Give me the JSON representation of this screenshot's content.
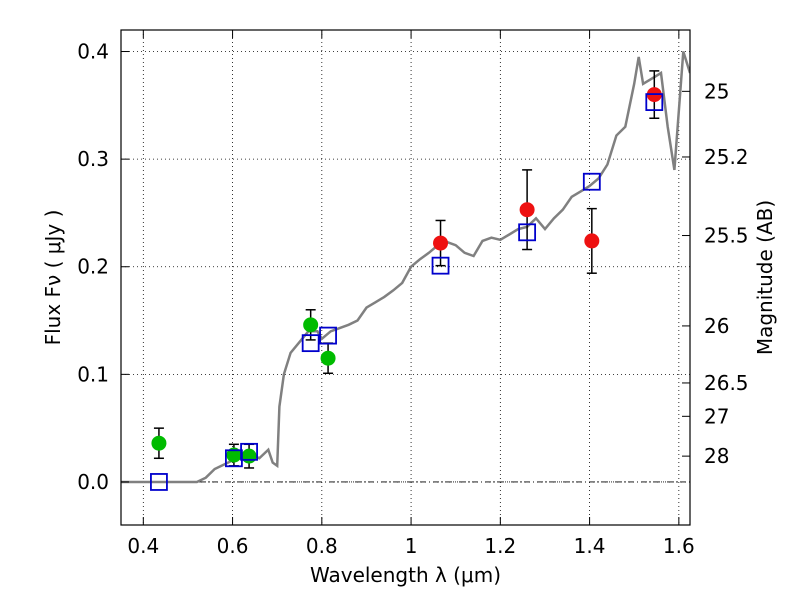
{
  "chart_data": {
    "type": "scatter",
    "title": "",
    "xlabel": "Wavelength  λ (μm)",
    "ylabel": "Flux  Fν  ( μJy )",
    "y2label": "Magnitude (AB)",
    "xlim": [
      0.35,
      1.625
    ],
    "ylim": [
      -0.04,
      0.42
    ],
    "grid": true,
    "xticks": [
      0.4,
      0.6,
      0.8,
      1.0,
      1.2,
      1.4,
      1.6
    ],
    "xtick_labels": [
      "0.4",
      "0.6",
      "0.8",
      "1",
      "1.2",
      "1.4",
      "1.6"
    ],
    "yticks": [
      0.0,
      0.1,
      0.2,
      0.3,
      0.4
    ],
    "ytick_labels": [
      "0.0",
      "0.1",
      "0.2",
      "0.3",
      "0.4"
    ],
    "y2ticks": [
      {
        "label": "25",
        "flux": 0.363
      },
      {
        "label": "25.2",
        "flux": 0.302
      },
      {
        "label": "25.5",
        "flux": 0.229
      },
      {
        "label": "26",
        "flux": 0.145
      },
      {
        "label": "26.5",
        "flux": 0.092
      },
      {
        "label": "27",
        "flux": 0.061
      },
      {
        "label": "28",
        "flux": 0.024
      }
    ],
    "series": [
      {
        "kind": "line",
        "color": "#808080",
        "points": [
          [
            0.35,
            0.0
          ],
          [
            0.52,
            0.0
          ],
          [
            0.54,
            0.004
          ],
          [
            0.56,
            0.012
          ],
          [
            0.58,
            0.016
          ],
          [
            0.6,
            0.02
          ],
          [
            0.62,
            0.022
          ],
          [
            0.64,
            0.026
          ],
          [
            0.66,
            0.022
          ],
          [
            0.68,
            0.03
          ],
          [
            0.69,
            0.018
          ],
          [
            0.7,
            0.015
          ],
          [
            0.705,
            0.07
          ],
          [
            0.715,
            0.1
          ],
          [
            0.73,
            0.12
          ],
          [
            0.75,
            0.13
          ],
          [
            0.77,
            0.14
          ],
          [
            0.79,
            0.14
          ],
          [
            0.8,
            0.133
          ],
          [
            0.82,
            0.14
          ],
          [
            0.84,
            0.143
          ],
          [
            0.86,
            0.146
          ],
          [
            0.88,
            0.15
          ],
          [
            0.9,
            0.162
          ],
          [
            0.92,
            0.167
          ],
          [
            0.94,
            0.172
          ],
          [
            0.96,
            0.178
          ],
          [
            0.98,
            0.185
          ],
          [
            1.0,
            0.2
          ],
          [
            1.02,
            0.207
          ],
          [
            1.04,
            0.213
          ],
          [
            1.06,
            0.22
          ],
          [
            1.08,
            0.223
          ],
          [
            1.1,
            0.22
          ],
          [
            1.12,
            0.213
          ],
          [
            1.14,
            0.21
          ],
          [
            1.16,
            0.224
          ],
          [
            1.18,
            0.227
          ],
          [
            1.2,
            0.225
          ],
          [
            1.22,
            0.23
          ],
          [
            1.24,
            0.235
          ],
          [
            1.26,
            0.237
          ],
          [
            1.28,
            0.245
          ],
          [
            1.3,
            0.235
          ],
          [
            1.32,
            0.245
          ],
          [
            1.34,
            0.253
          ],
          [
            1.36,
            0.265
          ],
          [
            1.38,
            0.27
          ],
          [
            1.4,
            0.275
          ],
          [
            1.42,
            0.282
          ],
          [
            1.44,
            0.295
          ],
          [
            1.46,
            0.322
          ],
          [
            1.48,
            0.33
          ],
          [
            1.5,
            0.37
          ],
          [
            1.51,
            0.395
          ],
          [
            1.52,
            0.37
          ],
          [
            1.54,
            0.375
          ],
          [
            1.56,
            0.38
          ],
          [
            1.575,
            0.33
          ],
          [
            1.59,
            0.29
          ],
          [
            1.61,
            0.4
          ],
          [
            1.625,
            0.38
          ]
        ]
      },
      {
        "kind": "model-photometry",
        "marker": "open-square",
        "color": "#0000cc",
        "points": [
          [
            0.435,
            0.0
          ],
          [
            0.603,
            0.022
          ],
          [
            0.637,
            0.028
          ],
          [
            0.775,
            0.129
          ],
          [
            0.814,
            0.136
          ],
          [
            1.066,
            0.201
          ],
          [
            1.26,
            0.232
          ],
          [
            1.405,
            0.279
          ],
          [
            1.545,
            0.353
          ]
        ]
      },
      {
        "kind": "observed-optical",
        "marker": "filled-circle",
        "color": "#00bb00",
        "points": [
          {
            "x": 0.435,
            "y": 0.036,
            "err": 0.014
          },
          {
            "x": 0.603,
            "y": 0.025,
            "err": 0.01
          },
          {
            "x": 0.637,
            "y": 0.024,
            "err": 0.011
          },
          {
            "x": 0.775,
            "y": 0.146,
            "err": 0.014
          },
          {
            "x": 0.814,
            "y": 0.115,
            "err": 0.014
          }
        ]
      },
      {
        "kind": "observed-nir",
        "marker": "filled-circle",
        "color": "#ee1111",
        "points": [
          {
            "x": 1.066,
            "y": 0.222,
            "err": 0.021
          },
          {
            "x": 1.26,
            "y": 0.253,
            "err": 0.037
          },
          {
            "x": 1.405,
            "y": 0.224,
            "err": 0.03
          },
          {
            "x": 1.545,
            "y": 0.36,
            "err": 0.022
          }
        ]
      }
    ]
  }
}
